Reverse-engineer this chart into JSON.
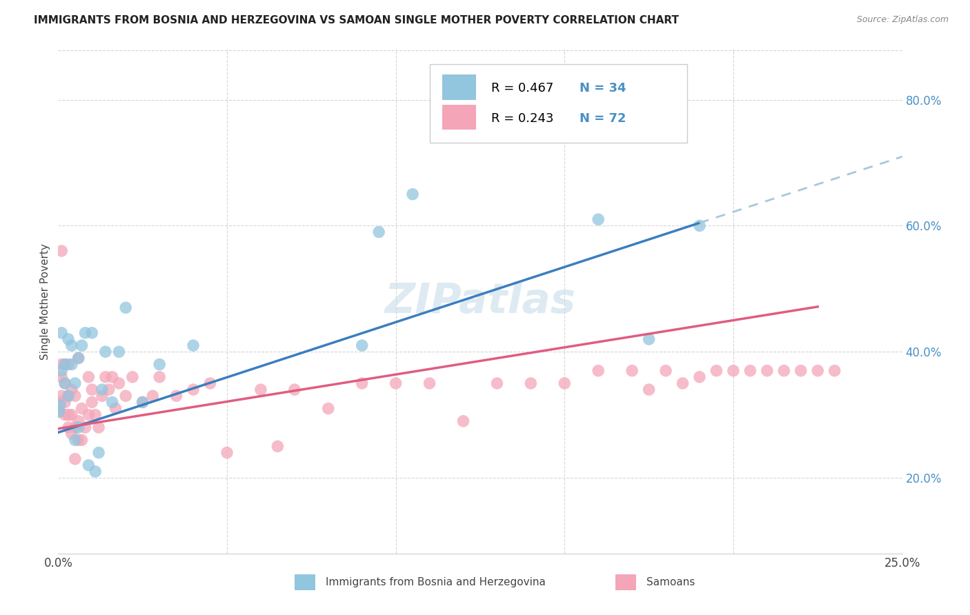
{
  "title": "IMMIGRANTS FROM BOSNIA AND HERZEGOVINA VS SAMOAN SINGLE MOTHER POVERTY CORRELATION CHART",
  "source": "Source: ZipAtlas.com",
  "ylabel": "Single Mother Poverty",
  "color_blue": "#92c5de",
  "color_pink": "#f4a6b8",
  "color_blue_dark": "#3a7ebf",
  "color_pink_dark": "#e05c80",
  "trendline_blue": "#3a7ebf",
  "trendline_pink": "#e05c80",
  "trendline_dashed": "#a8c8d8",
  "background_color": "#ffffff",
  "grid_color": "#cccccc",
  "right_tick_color": "#4a90c4",
  "watermark_color": "#c8dde8",
  "bosnia_x": [
    0.0003,
    0.0005,
    0.001,
    0.001,
    0.002,
    0.002,
    0.003,
    0.003,
    0.004,
    0.004,
    0.005,
    0.005,
    0.006,
    0.006,
    0.007,
    0.008,
    0.009,
    0.01,
    0.011,
    0.012,
    0.013,
    0.014,
    0.016,
    0.018,
    0.02,
    0.025,
    0.03,
    0.04,
    0.09,
    0.095,
    0.105,
    0.16,
    0.175,
    0.19
  ],
  "bosnia_y": [
    0.305,
    0.315,
    0.37,
    0.43,
    0.35,
    0.38,
    0.33,
    0.42,
    0.38,
    0.41,
    0.26,
    0.35,
    0.28,
    0.39,
    0.41,
    0.43,
    0.22,
    0.43,
    0.21,
    0.24,
    0.34,
    0.4,
    0.32,
    0.4,
    0.47,
    0.32,
    0.38,
    0.41,
    0.41,
    0.59,
    0.65,
    0.61,
    0.42,
    0.6
  ],
  "samoan_x": [
    0.0003,
    0.0005,
    0.001,
    0.001,
    0.001,
    0.001,
    0.002,
    0.002,
    0.002,
    0.002,
    0.003,
    0.003,
    0.003,
    0.003,
    0.004,
    0.004,
    0.004,
    0.005,
    0.005,
    0.005,
    0.006,
    0.006,
    0.006,
    0.007,
    0.007,
    0.008,
    0.009,
    0.009,
    0.01,
    0.01,
    0.011,
    0.012,
    0.013,
    0.014,
    0.015,
    0.016,
    0.017,
    0.018,
    0.02,
    0.022,
    0.025,
    0.028,
    0.03,
    0.035,
    0.04,
    0.045,
    0.05,
    0.06,
    0.065,
    0.07,
    0.08,
    0.09,
    0.1,
    0.11,
    0.12,
    0.13,
    0.14,
    0.15,
    0.16,
    0.17,
    0.175,
    0.18,
    0.185,
    0.19,
    0.195,
    0.2,
    0.205,
    0.21,
    0.215,
    0.22,
    0.225,
    0.23
  ],
  "samoan_y": [
    0.305,
    0.32,
    0.33,
    0.36,
    0.38,
    0.56,
    0.3,
    0.32,
    0.35,
    0.38,
    0.28,
    0.3,
    0.33,
    0.38,
    0.27,
    0.3,
    0.34,
    0.23,
    0.28,
    0.33,
    0.26,
    0.29,
    0.39,
    0.26,
    0.31,
    0.28,
    0.3,
    0.36,
    0.32,
    0.34,
    0.3,
    0.28,
    0.33,
    0.36,
    0.34,
    0.36,
    0.31,
    0.35,
    0.33,
    0.36,
    0.32,
    0.33,
    0.36,
    0.33,
    0.34,
    0.35,
    0.24,
    0.34,
    0.25,
    0.34,
    0.31,
    0.35,
    0.35,
    0.35,
    0.29,
    0.35,
    0.35,
    0.35,
    0.37,
    0.37,
    0.34,
    0.37,
    0.35,
    0.36,
    0.37,
    0.37,
    0.37,
    0.37,
    0.37,
    0.37,
    0.37,
    0.37
  ],
  "xlim": [
    0.0,
    0.25
  ],
  "ylim": [
    0.08,
    0.88
  ],
  "ytick_vals": [
    0.2,
    0.4,
    0.6,
    0.8
  ],
  "ytick_labels": [
    "20.0%",
    "40.0%",
    "60.0%",
    "80.0%"
  ],
  "xtick_vals": [
    0.0,
    0.05,
    0.1,
    0.15,
    0.2,
    0.25
  ],
  "xtick_labels_show": [
    "0.0%",
    "",
    "",
    "",
    "",
    "25.0%"
  ]
}
